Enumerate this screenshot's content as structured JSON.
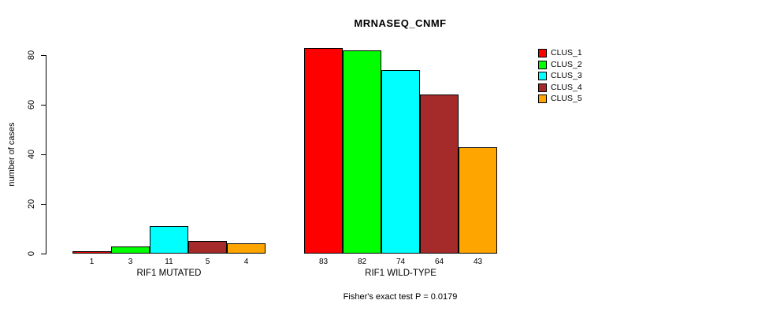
{
  "title": "MRNASEQ_CNMF",
  "y_axis": {
    "label": "number of cases",
    "ticks": [
      0,
      20,
      40,
      60,
      80
    ]
  },
  "footer": "Fisher's exact test P = 0.0179",
  "legend": {
    "items": [
      {
        "label": "CLUS_1",
        "color": "#FF0000"
      },
      {
        "label": "CLUS_2",
        "color": "#00FF00"
      },
      {
        "label": "CLUS_3",
        "color": "#00FFFF"
      },
      {
        "label": "CLUS_4",
        "color": "#A52A2A"
      },
      {
        "label": "CLUS_5",
        "color": "#FFA500"
      }
    ]
  },
  "chart_data": {
    "type": "bar",
    "title": "MRNASEQ_CNMF",
    "xlabel": "",
    "ylabel": "number of cases",
    "ylim": [
      0,
      80
    ],
    "yticks": [
      0,
      20,
      40,
      60,
      80
    ],
    "grid": false,
    "legend_position": "right",
    "categories": [
      "RIF1 MUTATED",
      "RIF1 WILD-TYPE"
    ],
    "series": [
      {
        "name": "CLUS_1",
        "color": "#FF0000",
        "values": [
          1,
          83
        ]
      },
      {
        "name": "CLUS_2",
        "color": "#00FF00",
        "values": [
          3,
          82
        ]
      },
      {
        "name": "CLUS_3",
        "color": "#00FFFF",
        "values": [
          11,
          74
        ]
      },
      {
        "name": "CLUS_4",
        "color": "#A52A2A",
        "values": [
          5,
          64
        ]
      },
      {
        "name": "CLUS_5",
        "color": "#FFA500",
        "values": [
          4,
          43
        ]
      }
    ],
    "bar_value_labels": [
      [
        1,
        3,
        11,
        5,
        4
      ],
      [
        83,
        82,
        74,
        64,
        43
      ]
    ],
    "annotation": "Fisher's exact test P = 0.0179"
  }
}
